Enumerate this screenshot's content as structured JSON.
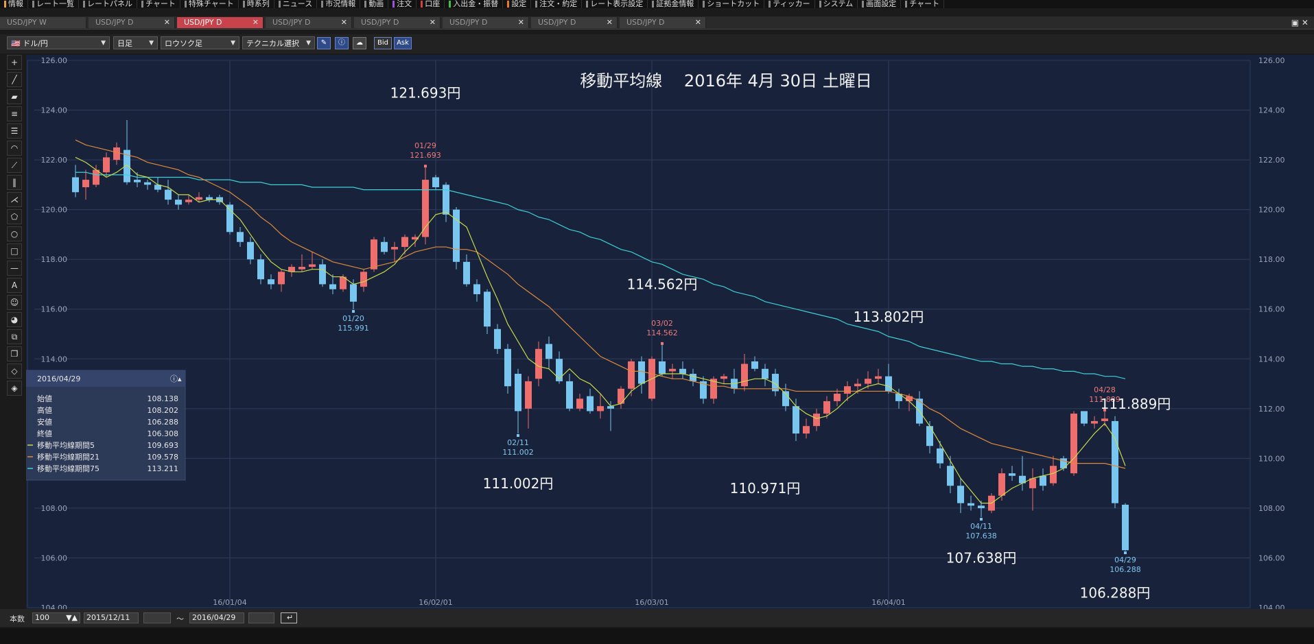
{
  "menu": [
    "情報",
    "レート一覧",
    "レートパネル",
    "チャート",
    "特殊チャート",
    "時系列",
    "ニュース",
    "市況情報",
    "動画",
    "注文",
    "口座",
    "入出金・振替",
    "設定",
    "注文・約定",
    "レート表示設定",
    "証拠金情報",
    "ショートカット",
    "ティッカー",
    "システム",
    "画面設定",
    "チャート"
  ],
  "tabs": [
    "USD/JPY W",
    "USD/JPY D",
    "USD/JPY D",
    "USD/JPY D",
    "USD/JPY D",
    "USD/JPY D",
    "USD/JPY D",
    "USD/JPY D"
  ],
  "active_tab": 2,
  "toolbar": {
    "pair": "ドル/円",
    "period": "日足",
    "charttype": "ロウソク足",
    "technical": "テクニカル選択",
    "bid": "Bid",
    "ask": "Ask"
  },
  "info_panel": {
    "date": "2016/04/29",
    "rows": [
      {
        "label": "始値",
        "value": "108.138"
      },
      {
        "label": "高値",
        "value": "108.202"
      },
      {
        "label": "安値",
        "value": "106.288"
      },
      {
        "label": "終値",
        "value": "106.308"
      },
      {
        "label": "移動平均線期間5",
        "value": "109.693",
        "color": "#c8d94a"
      },
      {
        "label": "移動平均線期間21",
        "value": "109.578",
        "color": "#e08a3a"
      },
      {
        "label": "移動平均線期間75",
        "value": "113.211",
        "color": "#3ecfd8"
      }
    ]
  },
  "bottom": {
    "count_label": "本数",
    "count": "100",
    "from": "2015/12/11",
    "tilde": "〜",
    "to": "2016/04/29"
  },
  "chart_data": {
    "type": "candlestick",
    "title": "移動平均線　 2016年 4月 30日 土曜日",
    "ylim": [
      104,
      126
    ],
    "yticks": [
      "126.00",
      "124.00",
      "122.00",
      "120.00",
      "118.00",
      "116.00",
      "114.00",
      "112.00",
      "110.00",
      "108.00",
      "106.00",
      "104.00"
    ],
    "xticks": [
      {
        "label": "16/01/04",
        "i": 15
      },
      {
        "label": "16/02/01",
        "i": 35
      },
      {
        "label": "16/03/01",
        "i": 56
      },
      {
        "label": "16/04/01",
        "i": 79
      }
    ],
    "grid": true,
    "candles": [
      [
        121.3,
        121.8,
        120.5,
        120.7
      ],
      [
        120.9,
        121.6,
        120.4,
        121.2
      ],
      [
        121.0,
        121.8,
        120.9,
        121.6
      ],
      [
        121.5,
        122.3,
        121.3,
        122.1
      ],
      [
        122.0,
        122.7,
        121.8,
        122.5
      ],
      [
        122.4,
        123.6,
        121.0,
        121.1
      ],
      [
        121.2,
        121.5,
        120.9,
        121.1
      ],
      [
        121.1,
        121.2,
        120.8,
        121.0
      ],
      [
        121.0,
        121.3,
        120.7,
        120.8
      ],
      [
        120.8,
        121.2,
        120.2,
        120.4
      ],
      [
        120.4,
        120.6,
        120.0,
        120.2
      ],
      [
        120.3,
        120.6,
        120.2,
        120.4
      ],
      [
        120.4,
        120.7,
        120.3,
        120.5
      ],
      [
        120.5,
        120.6,
        120.3,
        120.4
      ],
      [
        120.5,
        120.6,
        120.2,
        120.3
      ],
      [
        120.2,
        120.3,
        119.0,
        119.1
      ],
      [
        119.1,
        119.3,
        118.5,
        118.7
      ],
      [
        118.7,
        118.9,
        117.8,
        118.0
      ],
      [
        118.0,
        118.2,
        117.0,
        117.2
      ],
      [
        117.2,
        117.4,
        116.8,
        117.0
      ],
      [
        117.0,
        117.6,
        116.7,
        117.5
      ],
      [
        117.5,
        117.8,
        117.3,
        117.7
      ],
      [
        117.6,
        118.2,
        117.5,
        117.7
      ],
      [
        117.7,
        118.3,
        117.6,
        117.8
      ],
      [
        117.8,
        118.0,
        116.9,
        117.0
      ],
      [
        117.0,
        117.4,
        116.6,
        116.8
      ],
      [
        116.8,
        117.4,
        116.7,
        117.3
      ],
      [
        117.0,
        117.2,
        115.991,
        116.3
      ],
      [
        116.9,
        117.6,
        116.7,
        117.5
      ],
      [
        117.6,
        118.9,
        117.5,
        118.8
      ],
      [
        118.7,
        118.9,
        118.2,
        118.3
      ],
      [
        118.4,
        118.7,
        117.9,
        118.5
      ],
      [
        118.5,
        119.0,
        118.2,
        118.9
      ],
      [
        118.8,
        119.0,
        118.5,
        118.9
      ],
      [
        118.9,
        121.693,
        118.6,
        121.2
      ],
      [
        121.3,
        121.4,
        120.8,
        120.9
      ],
      [
        121.0,
        121.1,
        119.5,
        119.8
      ],
      [
        120.0,
        120.1,
        117.6,
        117.9
      ],
      [
        117.9,
        118.2,
        116.9,
        117.0
      ],
      [
        117.0,
        117.2,
        116.3,
        116.6
      ],
      [
        116.7,
        116.8,
        115.0,
        115.3
      ],
      [
        115.2,
        115.4,
        114.2,
        114.4
      ],
      [
        114.4,
        114.6,
        112.6,
        112.9
      ],
      [
        113.4,
        113.6,
        111.002,
        111.9
      ],
      [
        112.0,
        113.3,
        111.2,
        113.1
      ],
      [
        113.2,
        114.7,
        112.9,
        114.4
      ],
      [
        114.6,
        114.9,
        113.6,
        114.0
      ],
      [
        114.0,
        114.3,
        113.0,
        113.1
      ],
      [
        113.1,
        113.4,
        111.9,
        112.0
      ],
      [
        112.0,
        112.6,
        111.9,
        112.4
      ],
      [
        112.5,
        112.8,
        111.8,
        111.9
      ],
      [
        111.9,
        112.6,
        111.6,
        112.1
      ],
      [
        112.1,
        112.3,
        111.1,
        112.0
      ],
      [
        112.2,
        112.9,
        112.0,
        112.8
      ],
      [
        112.8,
        114.0,
        112.5,
        113.9
      ],
      [
        113.9,
        114.1,
        112.6,
        113.0
      ],
      [
        112.4,
        114.1,
        112.3,
        114.0
      ],
      [
        113.9,
        114.562,
        113.3,
        113.4
      ],
      [
        113.5,
        113.8,
        113.2,
        113.6
      ],
      [
        113.6,
        113.9,
        113.2,
        113.4
      ],
      [
        113.4,
        113.6,
        112.9,
        113.1
      ],
      [
        113.1,
        113.3,
        112.2,
        112.4
      ],
      [
        112.4,
        113.3,
        112.2,
        113.2
      ],
      [
        113.2,
        113.4,
        113.0,
        113.3
      ],
      [
        113.2,
        113.6,
        112.6,
        112.8
      ],
      [
        112.9,
        114.2,
        112.7,
        113.8
      ],
      [
        113.9,
        114.1,
        113.5,
        113.6
      ],
      [
        113.6,
        113.8,
        112.9,
        113.2
      ],
      [
        113.4,
        113.6,
        112.5,
        112.7
      ],
      [
        112.7,
        113.0,
        111.9,
        112.1
      ],
      [
        112.1,
        112.4,
        110.7,
        111.0
      ],
      [
        111.0,
        111.6,
        110.8,
        111.3
      ],
      [
        111.3,
        112.0,
        111.1,
        111.8
      ],
      [
        111.8,
        112.5,
        111.6,
        112.3
      ],
      [
        112.3,
        112.8,
        112.1,
        112.6
      ],
      [
        112.6,
        113.1,
        112.3,
        112.9
      ],
      [
        112.9,
        113.2,
        112.6,
        113.0
      ],
      [
        113.0,
        113.5,
        112.8,
        113.2
      ],
      [
        113.2,
        113.6,
        113.0,
        113.3
      ],
      [
        113.3,
        113.802,
        112.6,
        112.7
      ],
      [
        112.6,
        112.8,
        112.0,
        112.3
      ],
      [
        112.3,
        112.6,
        111.9,
        112.5
      ],
      [
        112.4,
        112.7,
        111.3,
        111.4
      ],
      [
        111.3,
        111.5,
        110.2,
        110.5
      ],
      [
        110.4,
        110.7,
        109.6,
        109.8
      ],
      [
        109.7,
        110.1,
        108.6,
        108.9
      ],
      [
        108.9,
        109.2,
        107.8,
        108.2
      ],
      [
        108.2,
        108.5,
        107.9,
        108.1
      ],
      [
        108.1,
        108.3,
        107.638,
        108.0
      ],
      [
        107.9,
        108.6,
        107.8,
        108.5
      ],
      [
        108.5,
        109.6,
        108.3,
        109.4
      ],
      [
        109.4,
        109.7,
        109.1,
        109.3
      ],
      [
        109.3,
        110.1,
        108.7,
        109.0
      ],
      [
        108.8,
        109.6,
        107.9,
        109.2
      ],
      [
        109.3,
        109.6,
        108.7,
        108.9
      ],
      [
        109.0,
        110.1,
        108.9,
        109.7
      ],
      [
        110.0,
        110.1,
        109.5,
        109.6
      ],
      [
        109.4,
        111.9,
        109.3,
        111.8
      ],
      [
        111.9,
        111.9,
        111.3,
        111.4
      ],
      [
        111.4,
        111.7,
        111.2,
        111.5
      ],
      [
        111.5,
        111.889,
        111.3,
        111.6
      ],
      [
        111.5,
        111.7,
        108.0,
        108.2
      ],
      [
        108.138,
        108.202,
        106.288,
        106.308
      ]
    ],
    "ma_series": [
      {
        "name": "移動平均線期間5",
        "color": "#c8d94a"
      },
      {
        "name": "移動平均線期間21",
        "color": "#e08a3a"
      },
      {
        "name": "移動平均線期間75",
        "color": "#3ecfd8"
      }
    ],
    "ma5": [
      122.1,
      121.9,
      121.6,
      121.3,
      121.5,
      121.8,
      121.4,
      121.3,
      121.0,
      120.9,
      120.6,
      120.6,
      120.3,
      120.4,
      120.4,
      120.0,
      119.6,
      119.0,
      118.4,
      117.9,
      117.6,
      117.5,
      117.5,
      117.6,
      117.6,
      117.3,
      117.3,
      117.0,
      117.1,
      117.3,
      117.5,
      117.8,
      118.3,
      118.7,
      119.3,
      119.8,
      119.9,
      119.6,
      119.3,
      118.3,
      117.3,
      116.4,
      115.4,
      114.7,
      114.0,
      113.7,
      113.6,
      113.2,
      113.6,
      113.2,
      113.0,
      112.6,
      112.1,
      112.2,
      112.7,
      113.0,
      113.2,
      113.4,
      113.4,
      113.4,
      113.3,
      113.2,
      113.1,
      113.0,
      113.0,
      113.1,
      113.2,
      113.2,
      113.0,
      112.6,
      112.1,
      111.8,
      111.6,
      111.7,
      112.0,
      112.4,
      112.7,
      112.9,
      113.0,
      112.9,
      112.6,
      112.3,
      111.9,
      111.3,
      110.6,
      109.9,
      109.2,
      108.7,
      108.2,
      108.2,
      108.5,
      108.8,
      109.0,
      109.2,
      109.3,
      109.4,
      109.6,
      110.0,
      110.5,
      111.0,
      111.4,
      110.8,
      109.7
    ],
    "ma21": [
      122.8,
      122.6,
      122.5,
      122.4,
      122.3,
      122.2,
      122.1,
      121.9,
      121.8,
      121.7,
      121.6,
      121.4,
      121.3,
      121.1,
      120.9,
      120.7,
      120.4,
      120.1,
      119.7,
      119.4,
      119.0,
      118.7,
      118.5,
      118.3,
      118.1,
      117.9,
      117.8,
      117.7,
      117.6,
      117.7,
      117.8,
      117.9,
      118.1,
      118.3,
      118.4,
      118.5,
      118.5,
      118.4,
      118.4,
      118.3,
      118.0,
      117.7,
      117.4,
      117.0,
      116.7,
      116.4,
      116.1,
      115.7,
      115.3,
      114.9,
      114.5,
      114.1,
      113.9,
      113.7,
      113.5,
      113.5,
      113.4,
      113.3,
      113.2,
      113.2,
      113.1,
      113.0,
      112.9,
      112.9,
      112.8,
      112.8,
      112.8,
      112.8,
      112.8,
      112.8,
      112.7,
      112.7,
      112.7,
      112.7,
      112.7,
      112.7,
      112.7,
      112.7,
      112.7,
      112.7,
      112.6,
      112.5,
      112.3,
      112.0,
      111.8,
      111.5,
      111.2,
      111.0,
      110.8,
      110.6,
      110.5,
      110.4,
      110.3,
      110.2,
      110.1,
      110.0,
      109.9,
      109.8,
      109.8,
      109.8,
      109.8,
      109.7,
      109.6
    ],
    "ma75": [
      121.5,
      121.5,
      121.4,
      121.4,
      121.4,
      121.4,
      121.3,
      121.3,
      121.3,
      121.3,
      121.3,
      121.3,
      121.2,
      121.2,
      121.2,
      121.2,
      121.1,
      121.1,
      121.1,
      121.0,
      121.0,
      121.0,
      121.0,
      120.9,
      120.9,
      120.9,
      120.9,
      120.9,
      120.8,
      120.8,
      120.8,
      120.8,
      120.8,
      120.8,
      120.8,
      120.8,
      120.8,
      120.7,
      120.6,
      120.5,
      120.4,
      120.3,
      120.2,
      120.0,
      119.9,
      119.7,
      119.6,
      119.4,
      119.2,
      119.1,
      118.9,
      118.8,
      118.6,
      118.4,
      118.3,
      118.1,
      117.9,
      117.8,
      117.6,
      117.4,
      117.3,
      117.2,
      117.0,
      116.9,
      116.7,
      116.6,
      116.5,
      116.3,
      116.2,
      116.1,
      116.0,
      115.9,
      115.8,
      115.7,
      115.6,
      115.4,
      115.3,
      115.2,
      115.1,
      114.9,
      114.8,
      114.7,
      114.5,
      114.4,
      114.3,
      114.2,
      114.1,
      114.0,
      113.9,
      113.9,
      113.8,
      113.8,
      113.7,
      113.7,
      113.6,
      113.6,
      113.5,
      113.5,
      113.4,
      113.4,
      113.3,
      113.3,
      113.2
    ],
    "point_annotations": [
      {
        "i": 34,
        "date": "01/29",
        "value": "121.693",
        "pos": "above",
        "color": "#f07a7a"
      },
      {
        "i": 27,
        "date": "01/20",
        "value": "115.991",
        "pos": "below",
        "color": "#7fc6f0"
      },
      {
        "i": 43,
        "date": "02/11",
        "value": "111.002",
        "pos": "below",
        "color": "#7fc6f0"
      },
      {
        "i": 57,
        "date": "03/02",
        "value": "114.562",
        "pos": "above",
        "color": "#f07a7a"
      },
      {
        "i": 88,
        "date": "04/11",
        "value": "107.638",
        "pos": "below",
        "color": "#7fc6f0"
      },
      {
        "i": 100,
        "date": "04/28",
        "value": "111.889",
        "pos": "above",
        "color": "#f07a7a"
      },
      {
        "i": 102,
        "date": "04/29",
        "value": "106.288",
        "pos": "below",
        "color": "#7fc6f0"
      }
    ],
    "big_labels": [
      {
        "text": "121.693円",
        "at": [
          34,
          124.5
        ]
      },
      {
        "text": "114.562円",
        "at": [
          57,
          116.8
        ]
      },
      {
        "text": "113.802円",
        "at": [
          79,
          115.5
        ]
      },
      {
        "text": "111.889円",
        "at": [
          103,
          112.0
        ]
      },
      {
        "text": "111.002円",
        "at": [
          43,
          108.8
        ]
      },
      {
        "text": "110.971円",
        "at": [
          67,
          108.6
        ]
      },
      {
        "text": "107.638円",
        "at": [
          88,
          105.8
        ]
      },
      {
        "text": "106.288円",
        "at": [
          101,
          104.4
        ]
      }
    ]
  }
}
